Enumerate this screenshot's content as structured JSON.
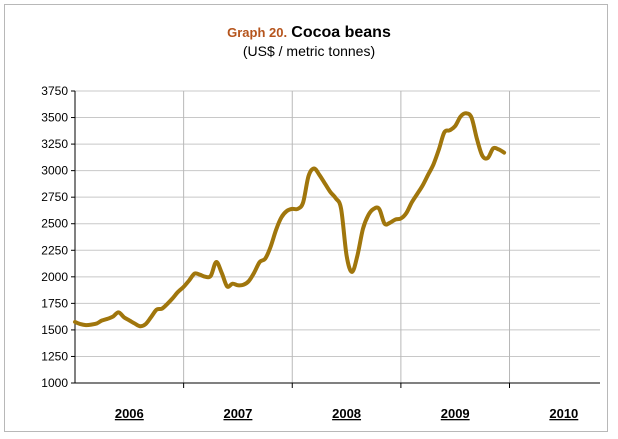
{
  "chart_data": {
    "type": "line",
    "title_prefix": "Graph 20.",
    "title": "Cocoa beans",
    "subtitle": "(US$ / metric tonnes)",
    "ylim": [
      1000,
      3750
    ],
    "yticks": [
      1000,
      1250,
      1500,
      1750,
      2000,
      2250,
      2500,
      2750,
      3000,
      3250,
      3500,
      3750
    ],
    "xlim": [
      2006.0,
      2010.833
    ],
    "x_labels": [
      {
        "label": "2006",
        "x": 2006.5
      },
      {
        "label": "2007",
        "x": 2007.5
      },
      {
        "label": "2008",
        "x": 2008.5
      },
      {
        "label": "2009",
        "x": 2009.5
      },
      {
        "label": "2010",
        "x": 2010.5
      }
    ],
    "year_boundaries": [
      2007,
      2008,
      2009,
      2010
    ],
    "grid": true,
    "line_color": "#a0760c",
    "series": [
      {
        "values": [
          [
            2006.0,
            1575
          ],
          [
            2006.05,
            1555
          ],
          [
            2006.1,
            1545
          ],
          [
            2006.15,
            1550
          ],
          [
            2006.2,
            1560
          ],
          [
            2006.25,
            1590
          ],
          [
            2006.3,
            1605
          ],
          [
            2006.35,
            1625
          ],
          [
            2006.4,
            1665
          ],
          [
            2006.45,
            1620
          ],
          [
            2006.5,
            1590
          ],
          [
            2006.55,
            1560
          ],
          [
            2006.6,
            1535
          ],
          [
            2006.65,
            1555
          ],
          [
            2006.7,
            1620
          ],
          [
            2006.75,
            1690
          ],
          [
            2006.8,
            1700
          ],
          [
            2006.85,
            1745
          ],
          [
            2006.9,
            1800
          ],
          [
            2006.95,
            1860
          ],
          [
            2007.0,
            1905
          ],
          [
            2007.05,
            1965
          ],
          [
            2007.1,
            2030
          ],
          [
            2007.15,
            2020
          ],
          [
            2007.2,
            2000
          ],
          [
            2007.25,
            2010
          ],
          [
            2007.3,
            2140
          ],
          [
            2007.35,
            2040
          ],
          [
            2007.4,
            1910
          ],
          [
            2007.45,
            1935
          ],
          [
            2007.5,
            1920
          ],
          [
            2007.55,
            1925
          ],
          [
            2007.6,
            1960
          ],
          [
            2007.65,
            2040
          ],
          [
            2007.7,
            2140
          ],
          [
            2007.75,
            2170
          ],
          [
            2007.8,
            2280
          ],
          [
            2007.85,
            2440
          ],
          [
            2007.9,
            2560
          ],
          [
            2007.95,
            2620
          ],
          [
            2008.0,
            2640
          ],
          [
            2008.05,
            2640
          ],
          [
            2008.1,
            2700
          ],
          [
            2008.15,
            2950
          ],
          [
            2008.2,
            3020
          ],
          [
            2008.25,
            2960
          ],
          [
            2008.3,
            2880
          ],
          [
            2008.35,
            2800
          ],
          [
            2008.4,
            2740
          ],
          [
            2008.45,
            2640
          ],
          [
            2008.5,
            2200
          ],
          [
            2008.55,
            2045
          ],
          [
            2008.6,
            2200
          ],
          [
            2008.65,
            2450
          ],
          [
            2008.7,
            2580
          ],
          [
            2008.75,
            2640
          ],
          [
            2008.8,
            2640
          ],
          [
            2008.85,
            2500
          ],
          [
            2008.9,
            2510
          ],
          [
            2008.95,
            2540
          ],
          [
            2009.0,
            2550
          ],
          [
            2009.05,
            2600
          ],
          [
            2009.1,
            2700
          ],
          [
            2009.15,
            2780
          ],
          [
            2009.2,
            2860
          ],
          [
            2009.25,
            2960
          ],
          [
            2009.3,
            3060
          ],
          [
            2009.35,
            3200
          ],
          [
            2009.4,
            3360
          ],
          [
            2009.45,
            3380
          ],
          [
            2009.5,
            3420
          ],
          [
            2009.55,
            3510
          ],
          [
            2009.6,
            3540
          ],
          [
            2009.65,
            3500
          ],
          [
            2009.7,
            3300
          ],
          [
            2009.75,
            3140
          ],
          [
            2009.8,
            3120
          ],
          [
            2009.85,
            3210
          ],
          [
            2009.9,
            3200
          ],
          [
            2009.95,
            3170
          ]
        ]
      }
    ]
  }
}
